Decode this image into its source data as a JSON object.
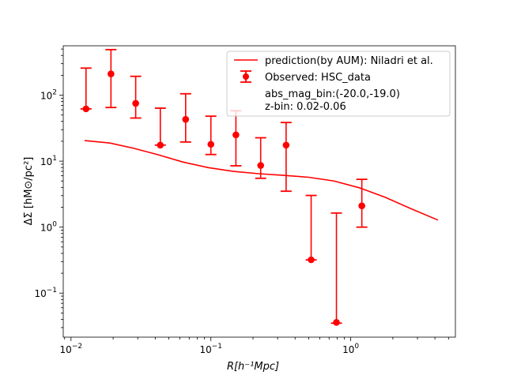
{
  "chart_data": {
    "type": "scatter",
    "xscale": "log",
    "yscale": "log",
    "xlim": [
      0.0088,
      5.6
    ],
    "ylim": [
      0.0215,
      560
    ],
    "xlabel": "R[h⁻¹Mpc]",
    "ylabel": "ΔΣ [hM⊙/pc²]",
    "x_ticks": [
      {
        "value": 0.01,
        "base": "10",
        "exp": "−2"
      },
      {
        "value": 0.1,
        "base": "10",
        "exp": "−1"
      },
      {
        "value": 1,
        "base": "10",
        "exp": "0"
      }
    ],
    "y_ticks": [
      {
        "value": 0.1,
        "base": "10",
        "exp": "−1"
      },
      {
        "value": 1,
        "base": "10",
        "exp": "0"
      },
      {
        "value": 10,
        "base": "10",
        "exp": "1"
      },
      {
        "value": 100,
        "base": "10",
        "exp": "2"
      }
    ],
    "grid": false,
    "legend_position": "top-right",
    "series": [
      {
        "name": "prediction(by AUM): Niladri et al.",
        "kind": "line",
        "color": "#ff0000",
        "x": [
          0.0125,
          0.019,
          0.028,
          0.042,
          0.063,
          0.095,
          0.145,
          0.22,
          0.33,
          0.5,
          0.76,
          1.15,
          1.75,
          2.7,
          4.2
        ],
        "y": [
          20.5,
          18.8,
          15.7,
          12.5,
          9.7,
          8.0,
          7.0,
          6.45,
          6.1,
          5.7,
          5.0,
          3.95,
          2.85,
          1.9,
          1.28
        ]
      },
      {
        "name": "Observed: HSC_data",
        "kind": "errorbar",
        "color": "#ff0000",
        "x": [
          0.0128,
          0.0193,
          0.029,
          0.0435,
          0.066,
          0.1,
          0.151,
          0.227,
          0.345,
          0.521,
          0.79,
          1.2
        ],
        "y": [
          62,
          210,
          75,
          17.5,
          43,
          18,
          25,
          8.6,
          17.5,
          0.32,
          0.036,
          2.1
        ],
        "yerr_low": [
          0.001,
          145,
          30,
          0.001,
          23.5,
          5.4,
          16.5,
          3.1,
          14,
          0.001,
          0.001,
          1.1
        ],
        "yerr_high": [
          195,
          280,
          118,
          46,
          62,
          30,
          33,
          14,
          21,
          2.7,
          1.6,
          3.2
        ]
      }
    ],
    "legend_extra": [
      "abs_mag_bin:(-20.0,-19.0)",
      "z-bin: 0.02-0.06"
    ]
  }
}
